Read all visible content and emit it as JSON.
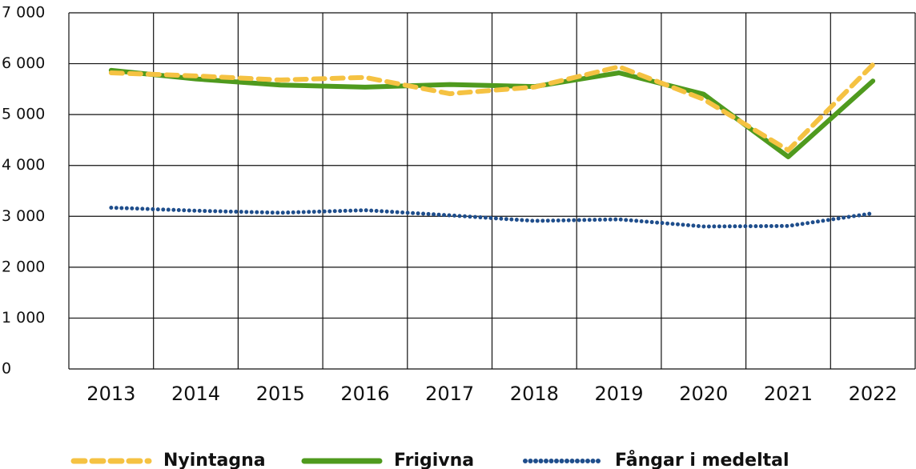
{
  "chart_data": {
    "type": "line",
    "categories": [
      "2013",
      "2014",
      "2015",
      "2016",
      "2017",
      "2018",
      "2019",
      "2020",
      "2021",
      "2022"
    ],
    "series": [
      {
        "name": "Nyintagna",
        "color": "#f5c242",
        "values": [
          5820,
          5760,
          5680,
          5730,
          5410,
          5540,
          5940,
          5300,
          4300,
          5980
        ]
      },
      {
        "name": "Frigivna",
        "color": "#4f9a1e",
        "values": [
          5870,
          5700,
          5580,
          5540,
          5590,
          5550,
          5820,
          5400,
          4170,
          5660
        ]
      },
      {
        "name": "Fångar i medeltal",
        "color": "#1f4e8c",
        "values": [
          3170,
          3110,
          3070,
          3120,
          3020,
          2910,
          2940,
          2800,
          2810,
          3060
        ]
      }
    ],
    "ylim": [
      0,
      7000
    ],
    "yticks": [
      0,
      {
        "value": 1000,
        "label": "1 000"
      },
      {
        "value": 2000,
        "label": "2 000"
      },
      {
        "value": 3000,
        "label": "3 000"
      },
      {
        "value": 4000,
        "label": "4 000"
      },
      {
        "value": 5000,
        "label": "5 000"
      },
      {
        "value": 6000,
        "label": "6 000"
      },
      {
        "value": 7000,
        "label": "7 000"
      }
    ],
    "grid": true
  }
}
